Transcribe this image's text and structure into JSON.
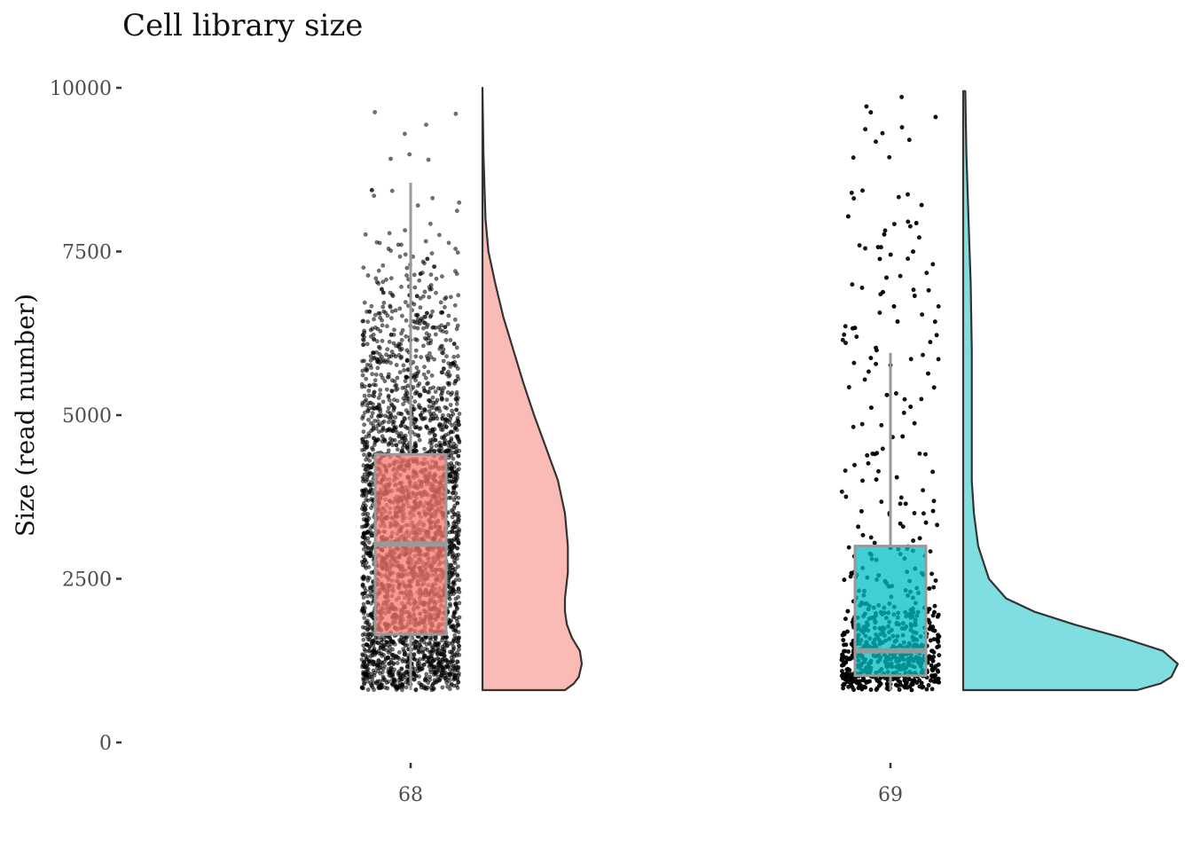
{
  "chart_data": {
    "type": "raincloud",
    "title": "Cell library size",
    "xlabel": "",
    "ylabel": "Size (read number)",
    "ylim": [
      0,
      10000
    ],
    "yticks": [
      0,
      2500,
      5000,
      7500,
      10000
    ],
    "ytick_labels": [
      "0",
      "2500",
      "5000",
      "7500",
      "10000"
    ],
    "categories": [
      "68",
      "69"
    ],
    "grid": false,
    "legend": "none",
    "series": [
      {
        "category": "68",
        "color": "#F8766D",
        "density_color": "#FABAB6",
        "box": {
          "min": 800,
          "q1": 1650,
          "median": 3030,
          "q3": 4400,
          "max": 8550
        },
        "data_range": [
          800,
          10000
        ],
        "density": [
          [
            800,
            0.83
          ],
          [
            900,
            0.92
          ],
          [
            1000,
            0.97
          ],
          [
            1200,
            1.0
          ],
          [
            1400,
            0.98
          ],
          [
            1600,
            0.9
          ],
          [
            1800,
            0.85
          ],
          [
            2000,
            0.83
          ],
          [
            2200,
            0.83
          ],
          [
            2600,
            0.86
          ],
          [
            3000,
            0.86
          ],
          [
            3500,
            0.83
          ],
          [
            4000,
            0.76
          ],
          [
            4500,
            0.64
          ],
          [
            5000,
            0.52
          ],
          [
            5500,
            0.41
          ],
          [
            6000,
            0.31
          ],
          [
            6500,
            0.21
          ],
          [
            7000,
            0.13
          ],
          [
            7500,
            0.06
          ],
          [
            8000,
            0.03
          ],
          [
            9000,
            0.01
          ],
          [
            10000,
            0.0
          ]
        ]
      },
      {
        "category": "69",
        "color": "#00BFC4",
        "density_color": "#80DEE0",
        "box": {
          "min": 800,
          "q1": 1020,
          "median": 1400,
          "q3": 3000,
          "max": 5950
        },
        "data_range": [
          800,
          9950
        ],
        "density": [
          [
            800,
            0.81
          ],
          [
            900,
            0.92
          ],
          [
            1000,
            0.97
          ],
          [
            1200,
            1.0
          ],
          [
            1400,
            0.93
          ],
          [
            1600,
            0.74
          ],
          [
            1800,
            0.52
          ],
          [
            2000,
            0.33
          ],
          [
            2200,
            0.2
          ],
          [
            2500,
            0.12
          ],
          [
            3000,
            0.07
          ],
          [
            3500,
            0.05
          ],
          [
            4000,
            0.04
          ],
          [
            5000,
            0.04
          ],
          [
            6000,
            0.04
          ],
          [
            7000,
            0.035
          ],
          [
            8000,
            0.025
          ],
          [
            9000,
            0.015
          ],
          [
            9950,
            0.01
          ]
        ]
      }
    ]
  }
}
